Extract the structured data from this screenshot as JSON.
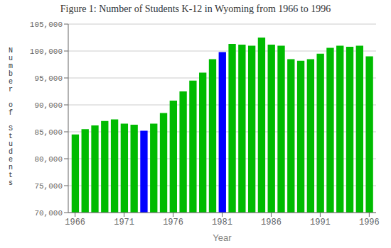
{
  "chart_data": {
    "type": "bar",
    "title": "Figure 1: Number of Students K-12 in Wyoming from 1966 to 1996",
    "xlabel": "Year",
    "ylabel": "Number of Students",
    "x": [
      1966,
      1967,
      1968,
      1969,
      1970,
      1971,
      1972,
      1973,
      1974,
      1975,
      1976,
      1977,
      1978,
      1979,
      1980,
      1981,
      1982,
      1983,
      1984,
      1985,
      1986,
      1987,
      1988,
      1989,
      1990,
      1991,
      1992,
      1993,
      1994,
      1995,
      1996
    ],
    "values": [
      84500,
      85500,
      86200,
      87000,
      87300,
      86500,
      86300,
      85200,
      86500,
      88500,
      90800,
      92500,
      94500,
      96000,
      98500,
      99800,
      101300,
      101200,
      101000,
      102500,
      101200,
      101000,
      98500,
      98200,
      98500,
      99500,
      100600,
      101000,
      100800,
      101000,
      99000
    ],
    "colors": [
      "#00bb00",
      "#00bb00",
      "#00bb00",
      "#00bb00",
      "#00bb00",
      "#00bb00",
      "#00bb00",
      "#0000ff",
      "#00bb00",
      "#00bb00",
      "#00bb00",
      "#00bb00",
      "#00bb00",
      "#00bb00",
      "#00bb00",
      "#0000ff",
      "#00bb00",
      "#00bb00",
      "#00bb00",
      "#00bb00",
      "#00bb00",
      "#00bb00",
      "#00bb00",
      "#00bb00",
      "#00bb00",
      "#00bb00",
      "#00bb00",
      "#00bb00",
      "#00bb00",
      "#00bb00",
      "#00bb00"
    ],
    "xlim": [
      1965.3,
      1996.7
    ],
    "xticks": [
      1966,
      1971,
      1976,
      1981,
      1986,
      1991,
      1996
    ],
    "ylim": [
      70000,
      105000
    ],
    "yticks": [
      {
        "value": 70000,
        "label": "70,000"
      },
      {
        "value": 75000,
        "label": "75,000"
      },
      {
        "value": 80000,
        "label": "80,000"
      },
      {
        "value": 85000,
        "label": "85,000"
      },
      {
        "value": 90000,
        "label": "90,000"
      },
      {
        "value": 95000,
        "label": "95,000"
      },
      {
        "value": 100000,
        "label": "100,000"
      },
      {
        "value": 105000,
        "label": "105,000"
      }
    ],
    "grid": true
  }
}
